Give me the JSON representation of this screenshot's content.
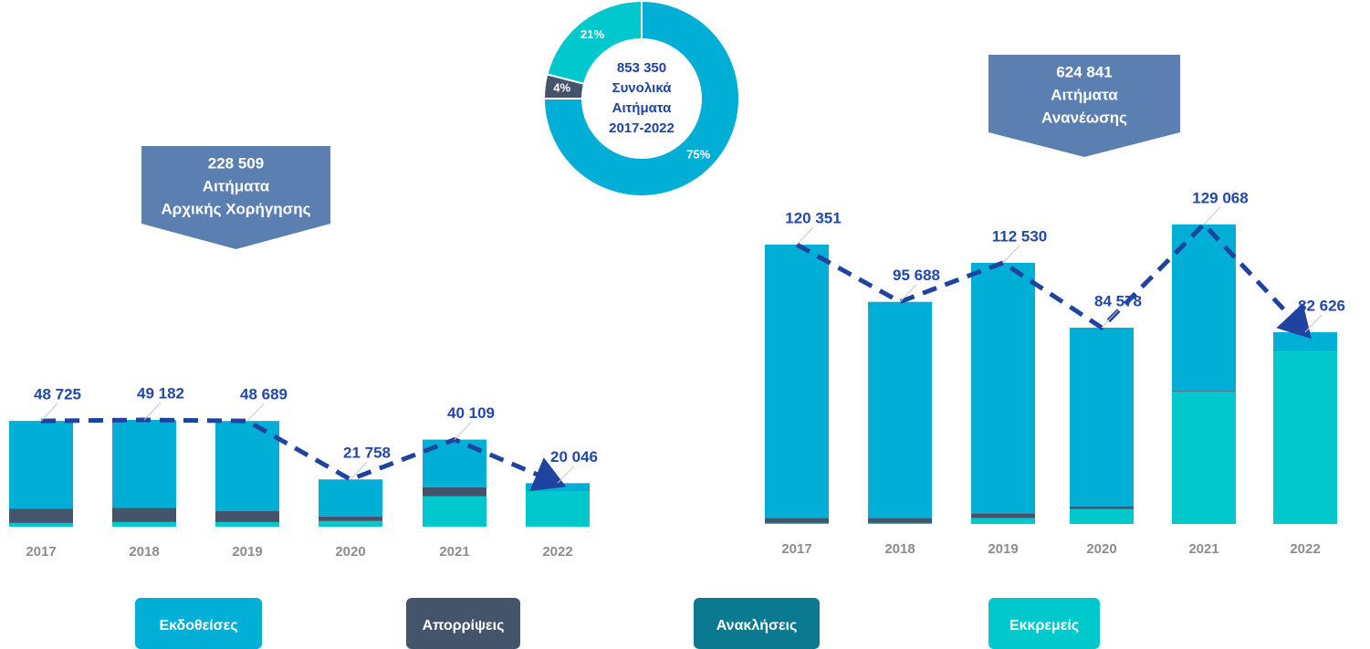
{
  "legend": [
    {
      "name": "Εκδοθείσες",
      "color": "#00aed6"
    },
    {
      "name": "Απορρίψεις",
      "color": "#44546a"
    },
    {
      "name": "Ανακλήσεις",
      "color": "#0b7a90"
    },
    {
      "name": "Εκκρεμείς",
      "color": "#00c8cc"
    }
  ],
  "chart_data": [
    {
      "type": "bar",
      "stacked": true,
      "callout": [
        "228 509",
        "Αιτήματα",
        "Αρχικής Χορήγησης"
      ],
      "categories": [
        "2017",
        "2018",
        "2019",
        "2020",
        "2021",
        "2022"
      ],
      "series": [
        {
          "values": [
            40525,
            40582,
            41389,
            17058,
            21909,
            3296
          ]
        },
        {
          "values": [
            6300,
            6300,
            5000,
            2100,
            4200,
            300
          ]
        },
        {
          "values": [
            200,
            200,
            200,
            100,
            100,
            50
          ]
        },
        {
          "values": [
            1700,
            2100,
            2100,
            2500,
            13900,
            16400
          ]
        }
      ],
      "totals": [
        48725,
        49182,
        48689,
        21758,
        40109,
        20046
      ],
      "value_labels": [
        "48 725",
        "49 182",
        "48 689",
        "21 758",
        "40 109",
        "20 046"
      ],
      "ylim": [
        0,
        140000
      ]
    },
    {
      "type": "bar",
      "stacked": true,
      "callout": [
        "624 841",
        "Αιτήματα",
        "Ανανέωσης"
      ],
      "categories": [
        "2017",
        "2018",
        "2019",
        "2020",
        "2021",
        "2022"
      ],
      "series": [
        {
          "values": [
            117751,
            93088,
            107930,
            76978,
            71668,
            7576
          ]
        },
        {
          "values": [
            2000,
            2000,
            2000,
            1200,
            300,
            300
          ]
        },
        {
          "values": [
            200,
            200,
            200,
            100,
            100,
            50
          ]
        },
        {
          "values": [
            400,
            400,
            2400,
            6300,
            57000,
            74700
          ]
        }
      ],
      "totals": [
        120351,
        95688,
        112530,
        84578,
        129068,
        82626
      ],
      "value_labels": [
        "120 351",
        "95 688",
        "112 530",
        "84 578",
        "129 068",
        "82 626"
      ],
      "ylim": [
        0,
        140000
      ]
    },
    {
      "type": "pie",
      "donut": true,
      "center": [
        "853 350",
        "Συνολικά",
        "Αιτήματα",
        "2017-2022"
      ],
      "values": [
        75,
        4,
        21
      ],
      "value_labels": [
        "75%",
        "4%",
        "21%"
      ],
      "colors": [
        "#00aed6",
        "#44546a",
        "#00c8cc"
      ]
    }
  ]
}
